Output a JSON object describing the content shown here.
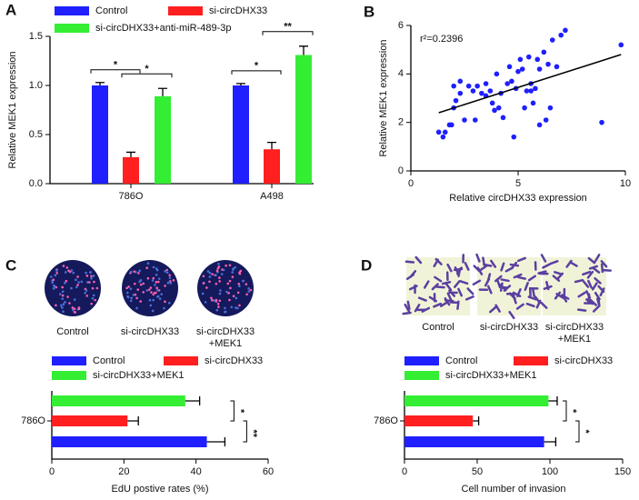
{
  "chart_data": [
    {
      "panel": "A",
      "type": "bar",
      "ylabel": "Relative MEK1 expression",
      "categories": [
        "786O",
        "A498"
      ],
      "series": [
        {
          "name": "Control",
          "color": "#1f1fff",
          "values": [
            1.0,
            1.0
          ],
          "errors": [
            0.03,
            0.02
          ]
        },
        {
          "name": "si-circDHX33",
          "color": "#ff1f1f",
          "values": [
            0.27,
            0.35
          ],
          "errors": [
            0.05,
            0.07
          ]
        },
        {
          "name": "si-circDHX33+anti-miR-489-3p",
          "color": "#33ee33",
          "values": [
            0.89,
            1.31
          ],
          "errors": [
            0.08,
            0.09
          ]
        }
      ],
      "ylim": [
        0,
        1.5
      ],
      "yticks": [
        {
          "value": 0,
          "label": "0.0"
        },
        {
          "value": 0.5,
          "label": "0.5"
        },
        {
          "value": 1,
          "label": "1.0"
        },
        {
          "value": 1.5,
          "label": "1.5"
        }
      ],
      "annotations": [
        "*",
        "*",
        "*",
        "**"
      ]
    },
    {
      "panel": "B",
      "type": "scatter",
      "xlabel": "Relative circDHX33 expression",
      "ylabel": "Relative MEK1 expression",
      "annotation": "r²=0.2396",
      "color": "#1f1fff",
      "x": [
        1.3,
        1.5,
        1.6,
        1.8,
        1.9,
        2.0,
        2.0,
        2.1,
        2.3,
        2.3,
        2.5,
        2.7,
        2.9,
        3.0,
        3.1,
        3.3,
        3.5,
        3.5,
        3.7,
        3.8,
        3.9,
        4.0,
        4.1,
        4.2,
        4.3,
        4.5,
        4.6,
        4.7,
        4.8,
        4.9,
        5.0,
        5.1,
        5.2,
        5.3,
        5.4,
        5.5,
        5.6,
        5.6,
        5.7,
        5.8,
        5.9,
        6.0,
        6.0,
        6.2,
        6.3,
        6.4,
        6.5,
        6.6,
        6.8,
        7.0,
        7.2,
        8.9,
        9.8
      ],
      "y": [
        1.6,
        1.4,
        1.6,
        1.9,
        1.9,
        2.6,
        3.5,
        2.9,
        3.7,
        3.2,
        2.1,
        3.5,
        3.3,
        2.1,
        3.5,
        3.2,
        3.1,
        3.6,
        3.3,
        2.8,
        2.5,
        4.0,
        2.6,
        3.2,
        2.2,
        3.6,
        4.3,
        3.7,
        1.4,
        3.4,
        4.1,
        4.6,
        4.2,
        2.6,
        3.3,
        4.7,
        3.6,
        3.3,
        2.8,
        3.4,
        4.6,
        1.9,
        4.2,
        4.9,
        2.1,
        4.4,
        2.6,
        5.4,
        4.3,
        5.6,
        5.8,
        2.0,
        5.2
      ],
      "fit": {
        "x": [
          1.3,
          9.8
        ],
        "y": [
          2.4,
          4.8
        ]
      },
      "xlim": [
        0,
        10
      ],
      "xticks": [
        0,
        5,
        10
      ],
      "ylim": [
        0,
        6
      ],
      "yticks": [
        0,
        2,
        4,
        6
      ]
    },
    {
      "panel": "C",
      "type": "barh",
      "xlabel": "EdU postive rates (%)",
      "captions": [
        [
          "Control"
        ],
        [
          "si-circDHX33"
        ],
        [
          "si-circDHX33",
          "+MEK1"
        ]
      ],
      "categories": [
        "786O"
      ],
      "series": [
        {
          "name": "Control",
          "color": "#1f1fff",
          "values": [
            43
          ],
          "errors": [
            5
          ]
        },
        {
          "name": "si-circDHX33",
          "color": "#ff1f1f",
          "values": [
            21
          ],
          "errors": [
            3
          ]
        },
        {
          "name": "si-circDHX33+MEK1",
          "color": "#33ee33",
          "values": [
            37
          ],
          "errors": [
            4
          ]
        }
      ],
      "xlim": [
        0,
        60
      ],
      "xticks": [
        0,
        20,
        40,
        60
      ],
      "annotations": [
        "*",
        "**"
      ]
    },
    {
      "panel": "D",
      "type": "barh",
      "xlabel": "Cell number of invasion",
      "captions": [
        [
          "Control"
        ],
        [
          "si-circDHX33"
        ],
        [
          "si-circDHX33",
          "+MEK1"
        ]
      ],
      "categories": [
        "786O"
      ],
      "series": [
        {
          "name": "Control",
          "color": "#1f1fff",
          "values": [
            96
          ],
          "errors": [
            8
          ]
        },
        {
          "name": "si-circDHX33",
          "color": "#ff1f1f",
          "values": [
            47
          ],
          "errors": [
            4
          ]
        },
        {
          "name": "si-circDHX33+MEK1",
          "color": "#33ee33",
          "values": [
            99
          ],
          "errors": [
            6
          ]
        }
      ],
      "xlim": [
        0,
        150
      ],
      "xticks": [
        0,
        50,
        100,
        150
      ],
      "annotations": [
        "*",
        "*"
      ]
    }
  ]
}
